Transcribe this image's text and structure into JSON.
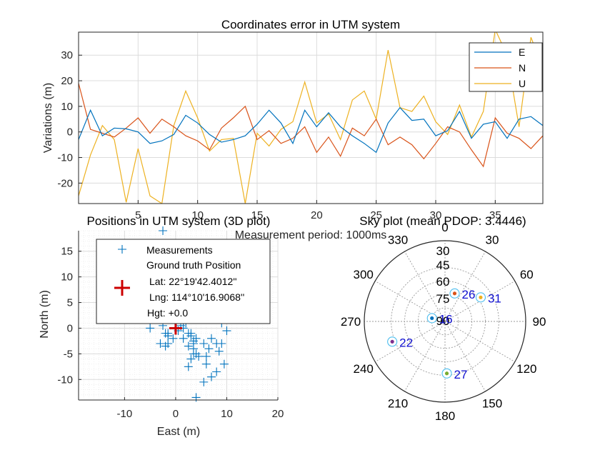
{
  "figure": {
    "background": "#ffffff",
    "axis_color": "#262626",
    "grid_color": "#dcdcdc"
  },
  "chart_data": [
    {
      "type": "line",
      "title": "Coordinates error in UTM system",
      "xlabel": "Measurement period: 1000ms",
      "ylabel": "Variations (m)",
      "xlim": [
        0,
        39
      ],
      "ylim": [
        -28,
        39
      ],
      "xticks": [
        5,
        10,
        15,
        20,
        25,
        30,
        35
      ],
      "yticks": [
        -20,
        -10,
        0,
        10,
        20,
        30
      ],
      "grid": true,
      "legend_position": "top-right",
      "x": [
        0,
        1,
        2,
        3,
        4,
        5,
        6,
        7,
        8,
        9,
        10,
        11,
        12,
        13,
        14,
        15,
        16,
        17,
        18,
        19,
        20,
        21,
        22,
        23,
        24,
        25,
        26,
        27,
        28,
        29,
        30,
        31,
        32,
        33,
        34,
        35,
        36,
        37,
        38,
        39
      ],
      "series": [
        {
          "name": "E",
          "color": "#0072BD",
          "values": [
            -3,
            8.5,
            -1.5,
            1.5,
            1.2,
            0,
            -4.5,
            -3.5,
            -1,
            6.5,
            3.5,
            -1,
            -4,
            -3,
            -1.5,
            3,
            8.5,
            3.5,
            -4.5,
            8.5,
            2,
            7.5,
            2,
            -1.5,
            -4.5,
            -8,
            3.5,
            9.5,
            4.5,
            5,
            -1.5,
            0.5,
            8,
            -2.5,
            3,
            4,
            -2.5,
            5,
            6,
            2.5
          ]
        },
        {
          "name": "N",
          "color": "#D95319",
          "values": [
            19,
            1,
            -0.5,
            -2,
            1.5,
            5.5,
            -0.5,
            5,
            2,
            -1.5,
            -3.5,
            -7,
            1.5,
            5.5,
            10,
            -3,
            0.5,
            -4.5,
            -2.5,
            2,
            -8,
            -2,
            -9.5,
            1.5,
            -1.5,
            5,
            -5,
            -2,
            -5,
            -10.5,
            -4.5,
            2,
            0,
            -7,
            -13.5,
            5.5,
            -0.5,
            -2.5,
            -6.5,
            -1.5
          ]
        },
        {
          "name": "U",
          "color": "#EDB120",
          "values": [
            -25,
            -9,
            2.5,
            -3,
            -27.5,
            -6.5,
            -25,
            -28,
            2.5,
            16,
            5.5,
            -7.5,
            -3,
            -2.5,
            -28,
            -0.5,
            -5.5,
            1,
            4,
            19.5,
            3.5,
            7,
            -3,
            12.5,
            16,
            5,
            32,
            9.5,
            8,
            14,
            4,
            -1,
            10.5,
            -2,
            8,
            40,
            30,
            2,
            37,
            25
          ]
        }
      ]
    },
    {
      "type": "scatter",
      "title": "Positions in UTM system (3D plot)",
      "xlabel": "East (m)",
      "ylabel": "North (m)",
      "xlim": [
        -19,
        20
      ],
      "ylim": [
        -14,
        19
      ],
      "xticks": [
        -10,
        0,
        10,
        20
      ],
      "yticks": [
        -10,
        -5,
        0,
        5,
        10,
        15
      ],
      "grid": true,
      "legend_position": "top-left",
      "series": [
        {
          "name": "Measurements",
          "color": "#0072BD",
          "x": [
            -2.5,
            0,
            1,
            2,
            2.5,
            1.5,
            -0.5,
            -2,
            -5,
            -1.5,
            0.5,
            2,
            3,
            3.5,
            2.5,
            4,
            4.5,
            3,
            2.5,
            3.5,
            4,
            5.5,
            6.5,
            7,
            8,
            9,
            8.5,
            9.5,
            10,
            8,
            7,
            6,
            5.5,
            4,
            3.5,
            3.5,
            -1.5,
            -1.5,
            0,
            1.5,
            3,
            6,
            9,
            -3,
            -2.5,
            -2,
            -1
          ],
          "y": [
            19,
            1,
            0.5,
            1,
            -1,
            -2,
            -2,
            -3.5,
            0,
            -1.5,
            -0.5,
            2,
            -1,
            -2.5,
            -3.5,
            -5,
            -5.5,
            -6,
            -7.5,
            -4,
            -2,
            -3,
            -4,
            -2,
            -3,
            1,
            -4.5,
            -7,
            -0.5,
            -8.5,
            -9.5,
            -7,
            -10.5,
            -13.5,
            -5,
            -3,
            -1,
            -3,
            1.5,
            0,
            -1.5,
            -5.5,
            -3,
            -3,
            0.5,
            -1,
            2.5
          ]
        },
        {
          "name": "Ground truth Position",
          "color": "#CC0000",
          "x": [
            0
          ],
          "y": [
            0
          ]
        }
      ],
      "legend_entries": [
        "Measurements",
        "Ground truth Position",
        "Lat: 22°19'42.4012''",
        "Lng: 114°10'16.9068''",
        "Hgt: +0.0"
      ]
    },
    {
      "type": "scatter",
      "title": "Sky plot (mean PDOP: 3.4446)",
      "projection": "polar",
      "angle_ticks": [
        "0",
        "30",
        "60",
        "90",
        "120",
        "150",
        "180",
        "210",
        "240",
        "270",
        "300",
        "330"
      ],
      "elevation_rings": [
        "30",
        "45",
        "60",
        "75",
        "90"
      ],
      "series": [
        {
          "name": "26",
          "azimuth": 19,
          "elevation": 57,
          "color": "#D95319"
        },
        {
          "name": "31",
          "azimuth": 56,
          "elevation": 42,
          "color": "#EDB120"
        },
        {
          "name": "16",
          "azimuth": 284,
          "elevation": 75,
          "color": "#0072BD"
        },
        {
          "name": "22",
          "azimuth": 249,
          "elevation": 27,
          "color": "#7E2F8E"
        },
        {
          "name": "27",
          "azimuth": 178,
          "elevation": 32,
          "color": "#77AC30"
        }
      ]
    }
  ]
}
